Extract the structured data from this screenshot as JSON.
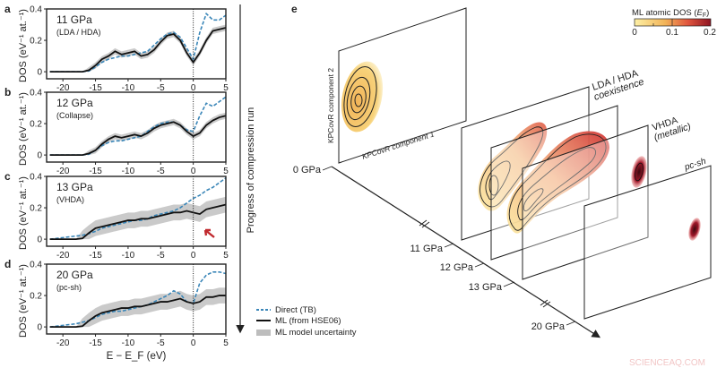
{
  "panel_letters": [
    "a",
    "b",
    "c",
    "d",
    "e"
  ],
  "progress_label": "Progress of compression run",
  "legend": {
    "direct": "Direct (TB)",
    "ml": "ML (from HSE06)",
    "uncertainty": "ML model uncertainty"
  },
  "colors": {
    "direct": "#3a86b8",
    "ml": "#111111",
    "uncertainty": "#bdbdbd",
    "arrow": "#c0282d"
  },
  "chart_data": [
    {
      "type": "line",
      "panel": "a",
      "title": "11 GPa",
      "subtitle": "(LDA / HDA)",
      "ylabel": "DOS (eV⁻¹ at.⁻¹)",
      "xlabel": "",
      "xlim": [
        -22.5,
        5
      ],
      "ylim": [
        -0.045,
        0.4
      ],
      "xticks": [
        -20,
        -15,
        -10,
        -5,
        0,
        5
      ],
      "yticks": [
        0,
        0.2,
        0.4
      ],
      "vline_x": 0,
      "x": [
        -22,
        -21,
        -20,
        -19,
        -18,
        -17,
        -16,
        -15,
        -14,
        -13,
        -12,
        -11,
        -10,
        -9,
        -8,
        -7,
        -6,
        -5,
        -4,
        -3,
        -2,
        -1,
        0,
        1,
        2,
        3,
        4,
        5
      ],
      "series": [
        {
          "name": "ML (from HSE06)",
          "values": [
            0,
            0,
            0,
            0,
            0,
            0,
            0.01,
            0.04,
            0.08,
            0.1,
            0.13,
            0.11,
            0.12,
            0.13,
            0.1,
            0.11,
            0.14,
            0.19,
            0.23,
            0.24,
            0.2,
            0.12,
            0.06,
            0.12,
            0.2,
            0.26,
            0.27,
            0.28
          ],
          "uncertainty": 0.02
        },
        {
          "name": "Direct (TB)",
          "values": [
            0,
            0,
            0,
            0,
            0,
            0,
            0.005,
            0.03,
            0.06,
            0.08,
            0.09,
            0.1,
            0.1,
            0.11,
            0.12,
            0.13,
            0.17,
            0.21,
            0.24,
            0.25,
            0.22,
            0.15,
            0.08,
            0.25,
            0.37,
            0.33,
            0.33,
            0.36
          ]
        }
      ]
    },
    {
      "type": "line",
      "panel": "b",
      "title": "12 GPa",
      "subtitle": "(Collapse)",
      "ylabel": "DOS (eV⁻¹ at.⁻¹)",
      "xlabel": "",
      "xlim": [
        -22.5,
        5
      ],
      "ylim": [
        -0.045,
        0.4
      ],
      "xticks": [
        -20,
        -15,
        -10,
        -5,
        0,
        5
      ],
      "yticks": [
        0,
        0.2,
        0.4
      ],
      "vline_x": 0,
      "x": [
        -22,
        -21,
        -20,
        -19,
        -18,
        -17,
        -16,
        -15,
        -14,
        -13,
        -12,
        -11,
        -10,
        -9,
        -8,
        -7,
        -6,
        -5,
        -4,
        -3,
        -2,
        -1,
        0,
        1,
        2,
        3,
        4,
        5
      ],
      "series": [
        {
          "name": "ML (from HSE06)",
          "values": [
            0,
            0,
            0,
            0,
            0,
            0,
            0.01,
            0.03,
            0.07,
            0.1,
            0.12,
            0.11,
            0.12,
            0.13,
            0.12,
            0.14,
            0.17,
            0.19,
            0.2,
            0.21,
            0.19,
            0.15,
            0.12,
            0.14,
            0.19,
            0.22,
            0.24,
            0.25
          ],
          "uncertainty": 0.02
        },
        {
          "name": "Direct (TB)",
          "values": [
            0,
            0,
            0,
            0,
            0,
            0,
            0.005,
            0.03,
            0.06,
            0.08,
            0.09,
            0.09,
            0.1,
            0.11,
            0.12,
            0.15,
            0.18,
            0.2,
            0.21,
            0.21,
            0.19,
            0.16,
            0.15,
            0.25,
            0.33,
            0.31,
            0.34,
            0.37
          ]
        }
      ]
    },
    {
      "type": "line",
      "panel": "c",
      "title": "13 GPa",
      "subtitle": "(VHDA)",
      "ylabel": "DOS (eV⁻¹ at.⁻¹)",
      "xlabel": "",
      "xlim": [
        -22.5,
        5
      ],
      "ylim": [
        -0.045,
        0.4
      ],
      "xticks": [
        -20,
        -15,
        -10,
        -5,
        0,
        5
      ],
      "yticks": [
        0,
        0.2,
        0.4
      ],
      "vline_x": 0,
      "x": [
        -22,
        -21,
        -20,
        -19,
        -18,
        -17,
        -16,
        -15,
        -14,
        -13,
        -12,
        -11,
        -10,
        -9,
        -8,
        -7,
        -6,
        -5,
        -4,
        -3,
        -2,
        -1,
        0,
        1,
        2,
        3,
        4,
        5
      ],
      "series": [
        {
          "name": "ML (from HSE06)",
          "values": [
            0,
            0,
            0,
            0,
            0,
            0.005,
            0.04,
            0.07,
            0.08,
            0.09,
            0.1,
            0.11,
            0.12,
            0.12,
            0.13,
            0.13,
            0.14,
            0.15,
            0.16,
            0.17,
            0.17,
            0.18,
            0.17,
            0.16,
            0.19,
            0.2,
            0.21,
            0.22
          ],
          "uncertainty": 0.05
        },
        {
          "name": "Direct (TB)",
          "values": [
            0,
            0.005,
            0.01,
            0.015,
            0.02,
            0.025,
            0.035,
            0.05,
            0.07,
            0.08,
            0.09,
            0.1,
            0.11,
            0.12,
            0.12,
            0.13,
            0.15,
            0.16,
            0.17,
            0.18,
            0.2,
            0.23,
            0.26,
            0.28,
            0.31,
            0.33,
            0.36,
            0.39
          ]
        }
      ]
    },
    {
      "type": "line",
      "panel": "d",
      "title": "20 GPa",
      "subtitle": "(pc-sh)",
      "ylabel": "DOS (eV⁻¹ at.⁻¹)",
      "xlabel": "E − E_F (eV)",
      "xlim": [
        -22.5,
        5
      ],
      "ylim": [
        -0.045,
        0.4
      ],
      "xticks": [
        -20,
        -15,
        -10,
        -5,
        0,
        5
      ],
      "yticks": [
        0,
        0.2,
        0.4
      ],
      "vline_x": 0,
      "x": [
        -22,
        -21,
        -20,
        -19,
        -18,
        -17,
        -16,
        -15,
        -14,
        -13,
        -12,
        -11,
        -10,
        -9,
        -8,
        -7,
        -6,
        -5,
        -4,
        -3,
        -2,
        -1,
        0,
        1,
        2,
        3,
        4,
        5
      ],
      "series": [
        {
          "name": "ML (from HSE06)",
          "values": [
            0,
            0,
            0,
            0,
            0,
            0.005,
            0.04,
            0.07,
            0.09,
            0.1,
            0.11,
            0.12,
            0.12,
            0.13,
            0.13,
            0.14,
            0.15,
            0.16,
            0.16,
            0.17,
            0.18,
            0.16,
            0.15,
            0.16,
            0.19,
            0.19,
            0.2,
            0.2
          ],
          "uncertainty": 0.05
        },
        {
          "name": "Direct (TB)",
          "values": [
            0,
            0.005,
            0.01,
            0.015,
            0.02,
            0.03,
            0.04,
            0.06,
            0.08,
            0.09,
            0.1,
            0.1,
            0.11,
            0.12,
            0.13,
            0.14,
            0.16,
            0.18,
            0.2,
            0.23,
            0.21,
            0.16,
            0.15,
            0.28,
            0.33,
            0.35,
            0.35,
            0.34
          ]
        }
      ]
    }
  ],
  "panel_e": {
    "pressure_labels": [
      "0 GPa",
      "11 GPa",
      "12 GPa",
      "13 GPa",
      "20 GPa"
    ],
    "phase_labels": {
      "lda_hda_1": "LDA / HDA",
      "lda_hda_2": "coexistence",
      "vhda_1": "VHDA",
      "vhda_2": "(metallic)",
      "pcsh": "pc-sh"
    },
    "axis1": "KPCovR component 1",
    "axis2": "KPCovR component 2",
    "colorbar": {
      "title": "ML atomic DOS (E_F)",
      "ticks": [
        "0",
        "0.1",
        "0.2"
      ],
      "range": [
        0,
        0.2
      ],
      "colors": [
        "#fdf0a6",
        "#f2b458",
        "#e0553e",
        "#8e1422"
      ]
    }
  },
  "watermark": "SCIENCEAQ.COM"
}
